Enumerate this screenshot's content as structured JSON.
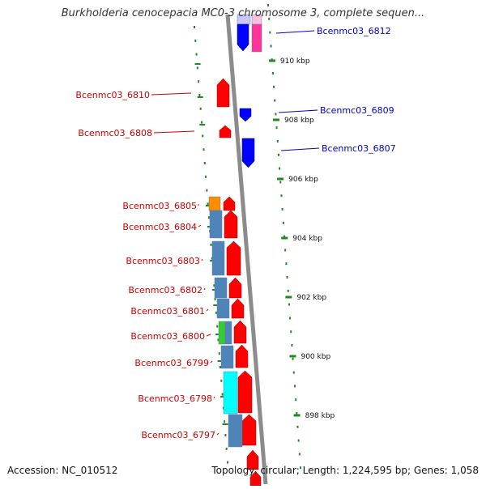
{
  "title": "Burkholderia cenocepacia MC0-3 chromosome 3, complete sequen...",
  "footer": {
    "accession": "Accession: NC_010512",
    "topology": "Topology: circular; Length: 1,224,595 bp; Genes: 1,058"
  },
  "colors": {
    "backbone": "#8c8c8c",
    "tick": "#1f8a1f",
    "forward_gene": "#ff0000",
    "reverse_gene": "#0000ff",
    "reverse_label": "#0000cc",
    "forward_label": "#cc0000",
    "orange_gene": "#ff8c00",
    "steel_gene": "#4f84b8",
    "green_gene": "#33cc33",
    "cyan_gene": "#00ffff",
    "pink_gene": "#ff3399",
    "lavender_gene": "#c8c8ff"
  },
  "position_labels": [
    "910 kbp",
    "908 kbp",
    "906 kbp",
    "904 kbp",
    "902 kbp",
    "900 kbp",
    "898 kbp"
  ],
  "reverse_genes": [
    {
      "name": "Bcenmc03_6812"
    },
    {
      "name": "Bcenmc03_6809"
    },
    {
      "name": "Bcenmc03_6807"
    }
  ],
  "forward_genes": [
    {
      "name": "Bcenmc03_6810"
    },
    {
      "name": "Bcenmc03_6808"
    },
    {
      "name": "Bcenmc03_6805"
    },
    {
      "name": "Bcenmc03_6804"
    },
    {
      "name": "Bcenmc03_6803"
    },
    {
      "name": "Bcenmc03_6802"
    },
    {
      "name": "Bcenmc03_6801"
    },
    {
      "name": "Bcenmc03_6800"
    },
    {
      "name": "Bcenmc03_6799"
    },
    {
      "name": "Bcenmc03_6798"
    },
    {
      "name": "Bcenmc03_6797"
    }
  ]
}
